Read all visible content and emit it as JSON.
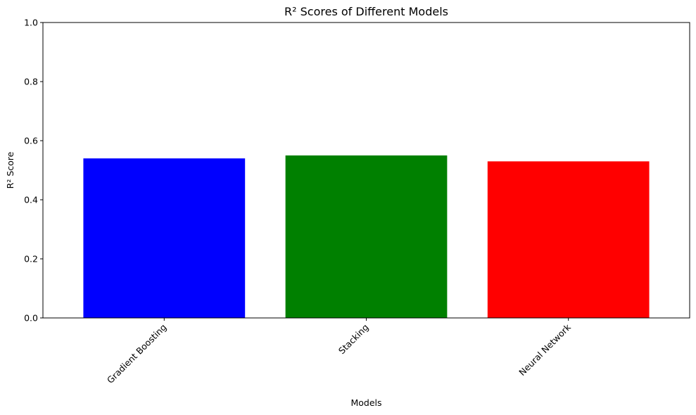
{
  "chart_data": {
    "type": "bar",
    "title": "R² Scores of Different Models",
    "xlabel": "Models",
    "ylabel": "R² Score",
    "categories": [
      "Gradient Boosting",
      "Stacking",
      "Neural Network"
    ],
    "values": [
      0.54,
      0.55,
      0.53
    ],
    "colors": [
      "#0000ff",
      "#008000",
      "#ff0000"
    ],
    "ylim": [
      0,
      1
    ],
    "yticks": [
      "0.0",
      "0.2",
      "0.4",
      "0.6",
      "0.8",
      "1.0"
    ],
    "xtick_rotation_deg": 45,
    "grid": false,
    "legend": "none"
  }
}
